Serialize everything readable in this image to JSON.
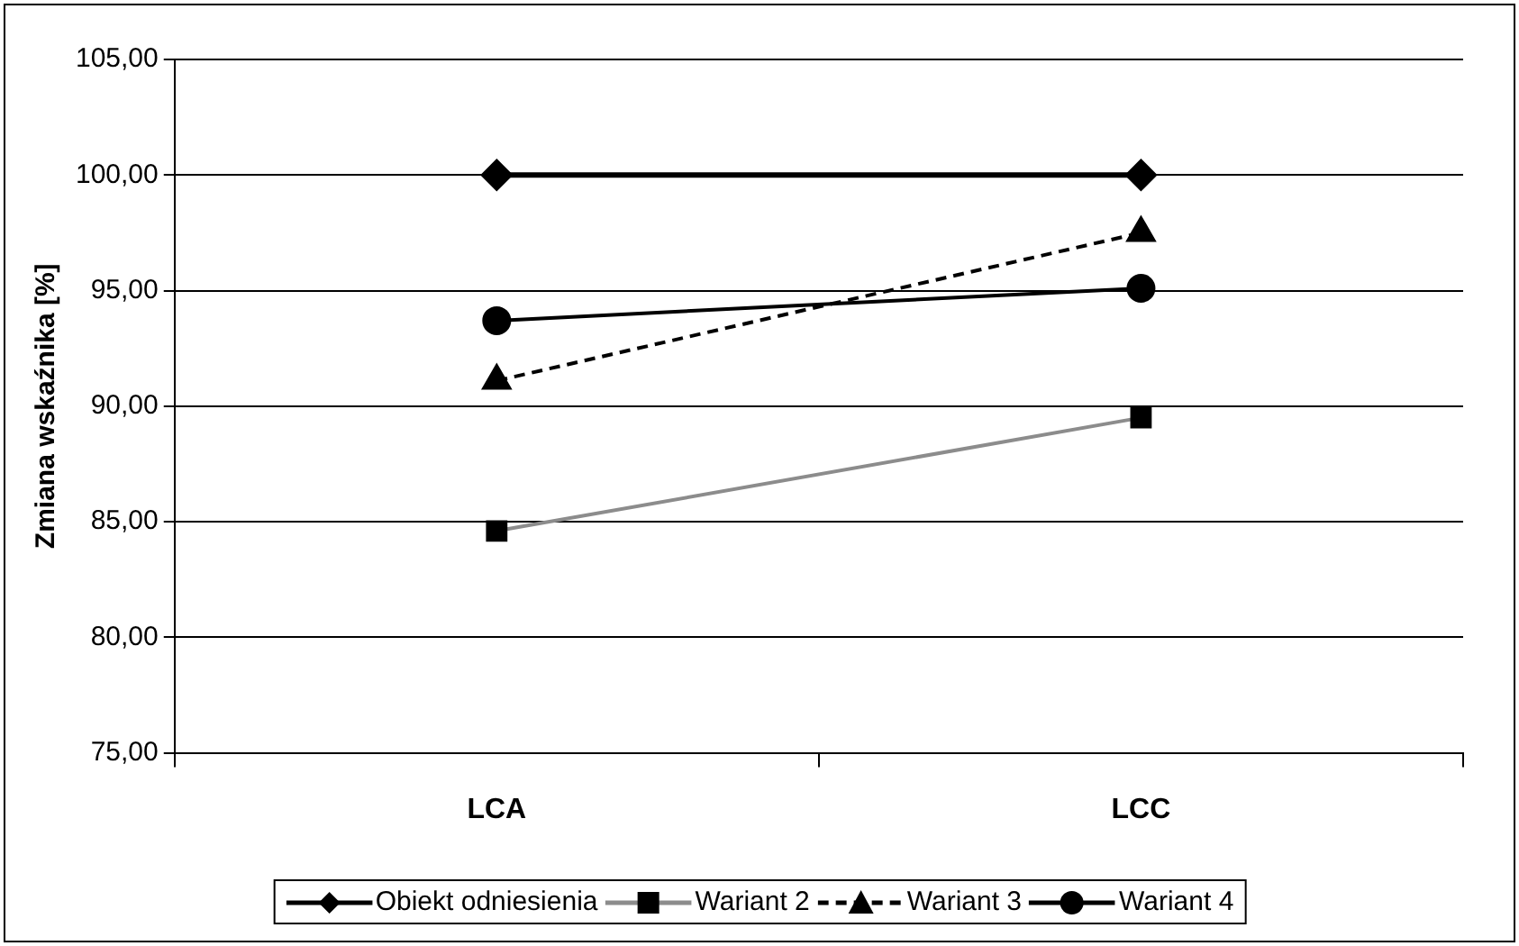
{
  "chart_data": {
    "type": "line",
    "ylabel": "Zmiana wskaźnika [%]",
    "categories": [
      "LCA",
      "LCC"
    ],
    "series": [
      {
        "name": "Obiekt odniesienia",
        "color": "#000000",
        "values": [
          100,
          100
        ],
        "marker": "diamond",
        "line_style": "solid"
      },
      {
        "name": "Wariant 2",
        "color": "#8c8c8c",
        "values": [
          84.6,
          89.5
        ],
        "marker": "square",
        "line_style": "solid"
      },
      {
        "name": "Wariant 3",
        "color": "#000000",
        "values": [
          91.1,
          97.5
        ],
        "marker": "triangle",
        "line_style": "dashed"
      },
      {
        "name": "Wariant 4",
        "color": "#000000",
        "values": [
          93.7,
          95.1
        ],
        "marker": "circle",
        "line_style": "solid"
      }
    ],
    "ylim": [
      75,
      105
    ],
    "yticks": [
      {
        "value": 75,
        "label": "75,00"
      },
      {
        "value": 80,
        "label": "80,00"
      },
      {
        "value": 85,
        "label": "85,00"
      },
      {
        "value": 90,
        "label": "90,00"
      },
      {
        "value": 95,
        "label": "95,00"
      },
      {
        "value": 100,
        "label": "100,00"
      },
      {
        "value": 105,
        "label": "105,00"
      }
    ],
    "grid": "y",
    "legend": "bottom"
  }
}
